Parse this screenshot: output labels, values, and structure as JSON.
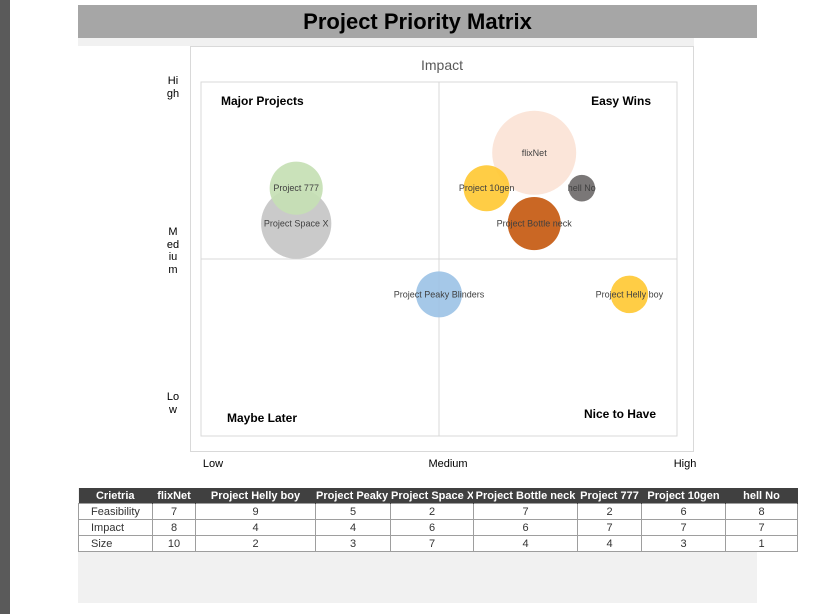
{
  "page": {
    "title": "Project Priority Matrix"
  },
  "chart_data": {
    "type": "scatter",
    "title": "Impact",
    "x_tick_labels": [
      "Low",
      "Medium",
      "High"
    ],
    "y_tick_labels": [
      "High",
      "Medium",
      "Low"
    ],
    "xlim": [
      0,
      10
    ],
    "ylim": [
      0,
      10
    ],
    "grid": "quadrant lines",
    "quadrants": {
      "top_left": "Major Projects",
      "top_right": "Easy Wins",
      "bottom_left": "Maybe Later",
      "bottom_right": "Nice to Have"
    },
    "points": [
      {
        "label": "flixNet",
        "x": 7,
        "y": 8,
        "size": 10,
        "color": "#fbe3d6"
      },
      {
        "label": "Project Helly boy",
        "x": 9,
        "y": 4,
        "size": 2,
        "color": "#ffc935"
      },
      {
        "label": "Project Peaky Blinders",
        "x": 5,
        "y": 4,
        "size": 3,
        "color": "#9dc3e6"
      },
      {
        "label": "Project Space X",
        "x": 2,
        "y": 6,
        "size": 7,
        "color": "#c6c6c6"
      },
      {
        "label": "Project Bottle neck",
        "x": 7,
        "y": 6,
        "size": 4,
        "color": "#c55a11"
      },
      {
        "label": "Project 777",
        "x": 2,
        "y": 7,
        "size": 4,
        "color": "#c5e0b4"
      },
      {
        "label": "Project 10gen",
        "x": 6,
        "y": 7,
        "size": 3,
        "color": "#ffc935"
      },
      {
        "label": "hell No",
        "x": 8,
        "y": 7,
        "size": 1,
        "color": "#6f6b6b"
      }
    ]
  },
  "table": {
    "header": [
      "Crietria",
      "flixNet",
      "Project Helly boy",
      "Project Peaky Blinders",
      "Project Space X",
      "Project Bottle neck",
      "Project 777",
      "Project 10gen",
      "hell No"
    ],
    "rows": [
      [
        "Feasibility",
        "7",
        "9",
        "5",
        "2",
        "7",
        "2",
        "6",
        "8"
      ],
      [
        "Impact",
        "8",
        "4",
        "4",
        "6",
        "6",
        "7",
        "7",
        "7"
      ],
      [
        "Size",
        "10",
        "2",
        "3",
        "7",
        "4",
        "4",
        "3",
        "1"
      ]
    ]
  }
}
